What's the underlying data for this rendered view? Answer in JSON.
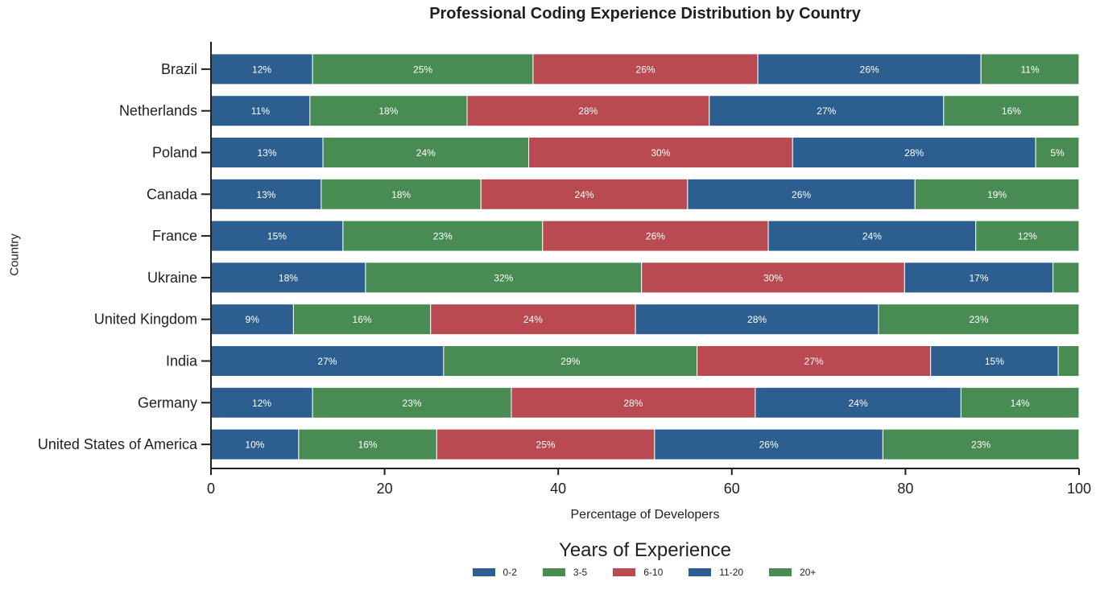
{
  "chart_data": {
    "type": "bar",
    "orientation": "horizontal",
    "stacked": true,
    "title": "Professional Coding Experience Distribution by Country",
    "xlabel": "Percentage of Developers",
    "ylabel": "Country",
    "xlim": [
      0,
      100
    ],
    "x_ticks": [
      "0",
      "20",
      "40",
      "60",
      "80",
      "100"
    ],
    "grid": false,
    "legend_title": "Years of Experience",
    "legend_position": "bottom-center",
    "categories": [
      "Brazil",
      "Netherlands",
      "Poland",
      "Canada",
      "France",
      "Ukraine",
      "United Kingdom",
      "India",
      "Germany",
      "United States of America"
    ],
    "series": [
      {
        "name": "0-2",
        "color": "#2c5e8f",
        "values": [
          11.7,
          11.4,
          12.9,
          12.7,
          15.2,
          17.8,
          9.5,
          26.8,
          11.7,
          10.1
        ],
        "labels": [
          "12%",
          "11%",
          "13%",
          "13%",
          "15%",
          "18%",
          "9%",
          "27%",
          "12%",
          "10%"
        ]
      },
      {
        "name": "3-5",
        "color": "#488b53",
        "values": [
          25.4,
          18.1,
          23.7,
          18.4,
          23.0,
          31.8,
          15.8,
          29.2,
          22.9,
          15.9
        ],
        "labels": [
          "25%",
          "18%",
          "24%",
          "18%",
          "23%",
          "32%",
          "16%",
          "29%",
          "23%",
          "16%"
        ]
      },
      {
        "name": "6-10",
        "color": "#b94a51",
        "values": [
          25.9,
          27.9,
          30.4,
          23.8,
          26.0,
          30.3,
          23.6,
          26.9,
          28.1,
          25.1
        ],
        "labels": [
          "26%",
          "28%",
          "30%",
          "24%",
          "26%",
          "30%",
          "24%",
          "27%",
          "28%",
          "25%"
        ]
      },
      {
        "name": "11-20",
        "color": "#2c5e8f",
        "values": [
          25.7,
          27.0,
          28.0,
          26.2,
          23.9,
          17.1,
          28.0,
          14.7,
          23.7,
          26.3
        ],
        "labels": [
          "26%",
          "27%",
          "28%",
          "26%",
          "24%",
          "17%",
          "28%",
          "15%",
          "24%",
          "26%"
        ]
      },
      {
        "name": "20+",
        "color": "#488b53",
        "values": [
          11.3,
          15.6,
          5.0,
          18.9,
          11.9,
          3.0,
          23.1,
          2.4,
          13.6,
          22.6
        ],
        "labels": [
          "11%",
          "16%",
          "5%",
          "19%",
          "12%",
          "",
          "23%",
          "",
          "14%",
          "23%"
        ]
      }
    ]
  }
}
